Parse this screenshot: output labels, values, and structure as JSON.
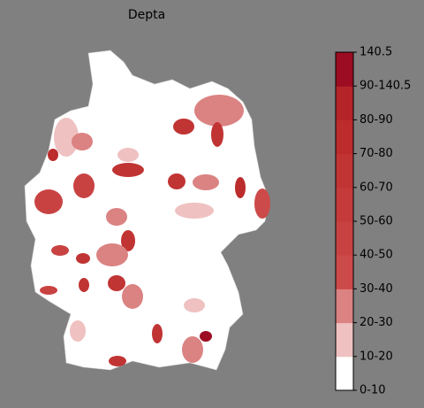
{
  "title": "Depta",
  "colorbar": {
    "labels": [
      "0-10",
      "10-20",
      "20-30",
      "30-40",
      "40-50",
      "50-60",
      "60-70",
      "70-80",
      "80-90",
      "90-140.5",
      "140.5"
    ],
    "colors": [
      "#ffffff",
      "#efc1c1",
      "#db8282",
      "#cd4a4a",
      "#c94242",
      "#c53b3b",
      "#c13434",
      "#bc2c2c",
      "#b52428",
      "#9c0c22"
    ]
  }
}
